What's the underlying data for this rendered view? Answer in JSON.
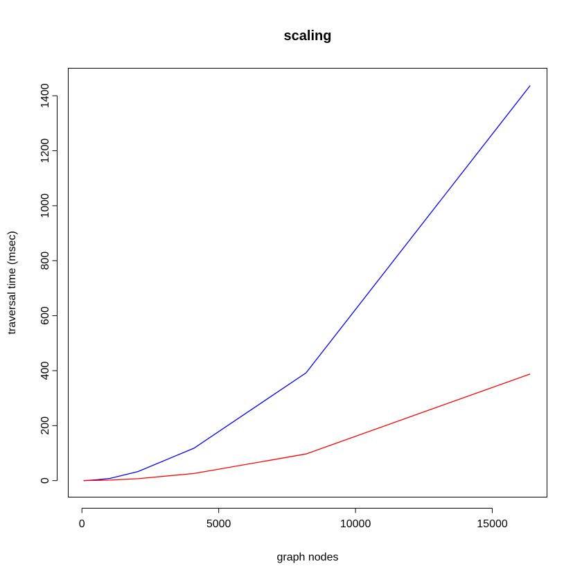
{
  "chart_data": {
    "type": "line",
    "title": "scaling",
    "xlabel": "graph nodes",
    "ylabel": "traversal time (msec)",
    "xlim": [
      -500,
      17000
    ],
    "ylim": [
      -60,
      1500
    ],
    "xticks": [
      0,
      5000,
      10000,
      15000
    ],
    "yticks": [
      0,
      200,
      400,
      600,
      800,
      1000,
      1200,
      1400
    ],
    "grid": false,
    "legend": "none",
    "series": [
      {
        "color": "#0000ff",
        "x": [
          64,
          128,
          256,
          512,
          1024,
          2048,
          4096,
          8192,
          16384
        ],
        "y": [
          0,
          0.5,
          1,
          3,
          8,
          33,
          118,
          392,
          1437
        ]
      },
      {
        "color": "#ff0000",
        "x": [
          64,
          128,
          256,
          512,
          1024,
          2048,
          4096,
          8192,
          16384
        ],
        "y": [
          0,
          0.2,
          0.5,
          1,
          2,
          7,
          26,
          97,
          388
        ]
      }
    ]
  }
}
